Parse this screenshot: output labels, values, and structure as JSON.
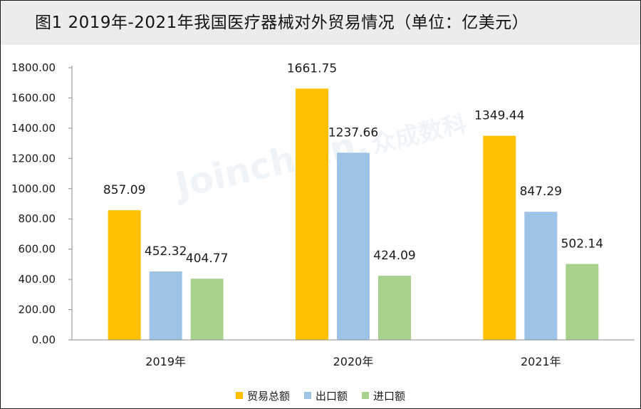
{
  "title": "图1  2019年-2021年我国医疗器械对外贸易情况（单位：亿美元）",
  "watermark": {
    "brand": "Joinchain.",
    "brand_cn": "众成数科"
  },
  "chart_data": {
    "type": "bar",
    "title": "图1  2019年-2021年我国医疗器械对外贸易情况（单位：亿美元）",
    "categories": [
      "2019年",
      "2020年",
      "2021年"
    ],
    "series": [
      {
        "name": "贸易总额",
        "color": "#ffc000",
        "values": [
          857.09,
          1661.75,
          1349.44
        ]
      },
      {
        "name": "出口额",
        "color": "#9dc3e6",
        "values": [
          452.32,
          1237.66,
          847.29
        ]
      },
      {
        "name": "进口额",
        "color": "#a9d18e",
        "values": [
          404.77,
          424.09,
          502.14
        ]
      }
    ],
    "ylim": [
      0,
      1800
    ],
    "yticks": [
      "0.00",
      "200.00",
      "400.00",
      "600.00",
      "800.00",
      "1000.00",
      "1200.00",
      "1400.00",
      "1600.00",
      "1800.00"
    ],
    "xlabel": "",
    "ylabel": "",
    "grid": false,
    "legend_position": "bottom"
  }
}
